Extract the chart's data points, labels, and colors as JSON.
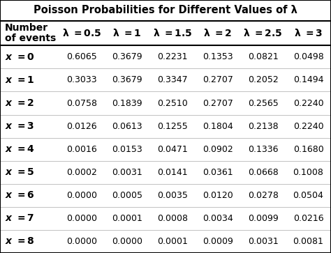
{
  "title": "Poisson Probabilities for Different Values of λ",
  "lambda_headers": [
    "λ = 0.5",
    "λ = 1",
    "λ = 1.5",
    "λ = 2",
    "λ = 2.5",
    "λ = 3"
  ],
  "row_labels": [
    "x = 0",
    "x = 1",
    "x = 2",
    "x = 3",
    "x = 4",
    "x = 5",
    "x = 6",
    "x = 7",
    "x = 8"
  ],
  "data": [
    [
      "0.6065",
      "0.3679",
      "0.2231",
      "0.1353",
      "0.0821",
      "0.0498"
    ],
    [
      "0.3033",
      "0.3679",
      "0.3347",
      "0.2707",
      "0.2052",
      "0.1494"
    ],
    [
      "0.0758",
      "0.1839",
      "0.2510",
      "0.2707",
      "0.2565",
      "0.2240"
    ],
    [
      "0.0126",
      "0.0613",
      "0.1255",
      "0.1804",
      "0.2138",
      "0.2240"
    ],
    [
      "0.0016",
      "0.0153",
      "0.0471",
      "0.0902",
      "0.1336",
      "0.1680"
    ],
    [
      "0.0002",
      "0.0031",
      "0.0141",
      "0.0361",
      "0.0668",
      "0.1008"
    ],
    [
      "0.0000",
      "0.0005",
      "0.0035",
      "0.0120",
      "0.0278",
      "0.0504"
    ],
    [
      "0.0000",
      "0.0001",
      "0.0008",
      "0.0034",
      "0.0099",
      "0.0216"
    ],
    [
      "0.0000",
      "0.0000",
      "0.0001",
      "0.0009",
      "0.0031",
      "0.0081"
    ]
  ],
  "bg_color": "#ffffff",
  "text_color": "#000000",
  "title_fontsize": 10.5,
  "header_fontsize": 10,
  "cell_fontsize": 9,
  "row_label_fontsize": 10
}
